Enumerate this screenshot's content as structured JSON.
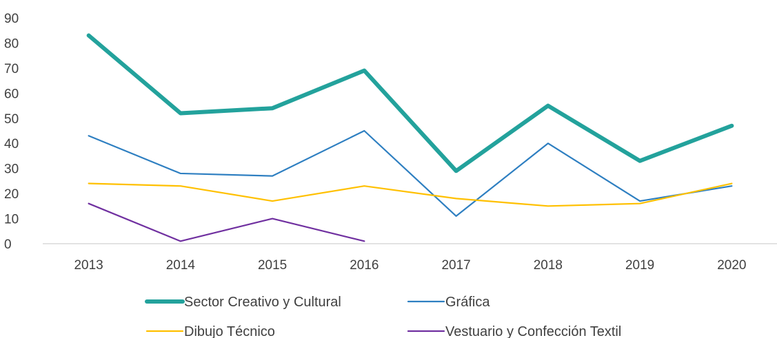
{
  "chart_data": {
    "type": "line",
    "title": "",
    "xlabel": "",
    "ylabel": "",
    "ylim": [
      0,
      90
    ],
    "yticks": [
      0,
      10,
      20,
      30,
      40,
      50,
      60,
      70,
      80,
      90
    ],
    "categories": [
      "2013",
      "2014",
      "2015",
      "2016",
      "2017",
      "2018",
      "2019",
      "2020"
    ],
    "grid": false,
    "legend_position": "bottom",
    "series": [
      {
        "name": "Sector Creativo y Cultural",
        "color": "#23A29C",
        "emphasis": "thick",
        "values": [
          83,
          52,
          54,
          69,
          29,
          55,
          33,
          47
        ]
      },
      {
        "name": "Gráfica",
        "color": "#2E7FC1",
        "values": [
          43,
          28,
          27,
          45,
          11,
          40,
          17,
          23
        ]
      },
      {
        "name": "Dibujo Técnico",
        "color": "#FFC000",
        "values": [
          24,
          23,
          17,
          23,
          18,
          15,
          16,
          24
        ]
      },
      {
        "name": "Vestuario y Confección Textil",
        "color": "#7030A0",
        "values": [
          16,
          1,
          10,
          1,
          null,
          null,
          null,
          null
        ]
      }
    ]
  }
}
